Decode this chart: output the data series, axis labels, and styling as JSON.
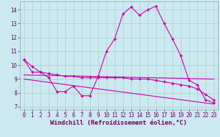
{
  "background_color": "#cce9f0",
  "grid_color": "#aad4cc",
  "line_color": "#cc00aa",
  "xlabel": "Windchill (Refroidissement éolien,°C)",
  "xlabel_fontsize": 6.5,
  "xtick_fontsize": 5.5,
  "ytick_fontsize": 5.5,
  "xlim": [
    -0.5,
    23.5
  ],
  "ylim": [
    6.8,
    14.6
  ],
  "yticks": [
    7,
    8,
    9,
    10,
    11,
    12,
    13,
    14
  ],
  "xticks": [
    0,
    1,
    2,
    3,
    4,
    5,
    6,
    7,
    8,
    9,
    10,
    11,
    12,
    13,
    14,
    15,
    16,
    17,
    18,
    19,
    20,
    21,
    22,
    23
  ],
  "series1_x": [
    0,
    1,
    2,
    3,
    4,
    5,
    6,
    7,
    8,
    9,
    10,
    11,
    12,
    13,
    14,
    15,
    16,
    17,
    18,
    19,
    20,
    21,
    22,
    23
  ],
  "series1_y": [
    10.4,
    9.9,
    9.5,
    9.1,
    8.1,
    8.1,
    8.5,
    7.8,
    7.8,
    9.2,
    11.0,
    11.9,
    13.7,
    14.2,
    13.6,
    14.0,
    14.25,
    13.0,
    11.9,
    10.7,
    8.9,
    8.6,
    7.5,
    7.3
  ],
  "series2_x": [
    0,
    1,
    2,
    3,
    4,
    5,
    6,
    7,
    8,
    9,
    10,
    11,
    12,
    13,
    14,
    15,
    16,
    17,
    18,
    19,
    20,
    21,
    22,
    23
  ],
  "series2_y": [
    10.4,
    9.5,
    9.5,
    9.4,
    9.3,
    9.2,
    9.2,
    9.1,
    9.1,
    9.1,
    9.1,
    9.1,
    9.1,
    9.0,
    9.0,
    9.0,
    8.9,
    8.8,
    8.7,
    8.6,
    8.5,
    8.3,
    7.9,
    7.5
  ],
  "series3_x": [
    0,
    23
  ],
  "series3_y": [
    9.3,
    9.0
  ],
  "series4_x": [
    0,
    23
  ],
  "series4_y": [
    9.0,
    7.2
  ]
}
